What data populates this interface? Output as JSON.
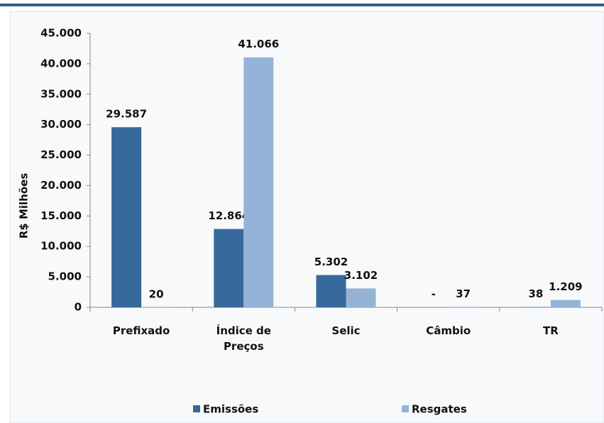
{
  "chart_data": {
    "type": "bar",
    "y_label": "R$ Milhões",
    "categories": [
      "Prefixado",
      "Índice de Preços",
      "Selic",
      "Câmbio",
      "TR"
    ],
    "series": [
      {
        "name": "Emissões",
        "color": "#36689b",
        "values": [
          29587,
          12864,
          5302,
          0,
          38
        ],
        "value_labels": [
          "29.587",
          "12.864",
          "5.302",
          "-",
          "38"
        ]
      },
      {
        "name": "Resgates",
        "color": "#95b3d7",
        "values": [
          20,
          41066,
          3102,
          37,
          1209
        ],
        "value_labels": [
          "20",
          "41.066",
          "3.102",
          "37",
          "1.209"
        ]
      }
    ],
    "ylim": [
      0,
      45000
    ],
    "yticks": [
      0,
      {
        "value": 5000,
        "label": "5.000"
      },
      {
        "value": 10000,
        "label": "10.000"
      },
      {
        "value": 15000,
        "label": "15.000"
      },
      {
        "value": 20000,
        "label": "20.000"
      },
      {
        "value": 25000,
        "label": "25.000"
      },
      {
        "value": 30000,
        "label": "30.000"
      },
      {
        "value": 35000,
        "label": "35.000"
      },
      {
        "value": 40000,
        "label": "40.000"
      },
      {
        "value": 45000,
        "label": "45.000"
      }
    ],
    "grid": false,
    "legend": "bottom"
  }
}
